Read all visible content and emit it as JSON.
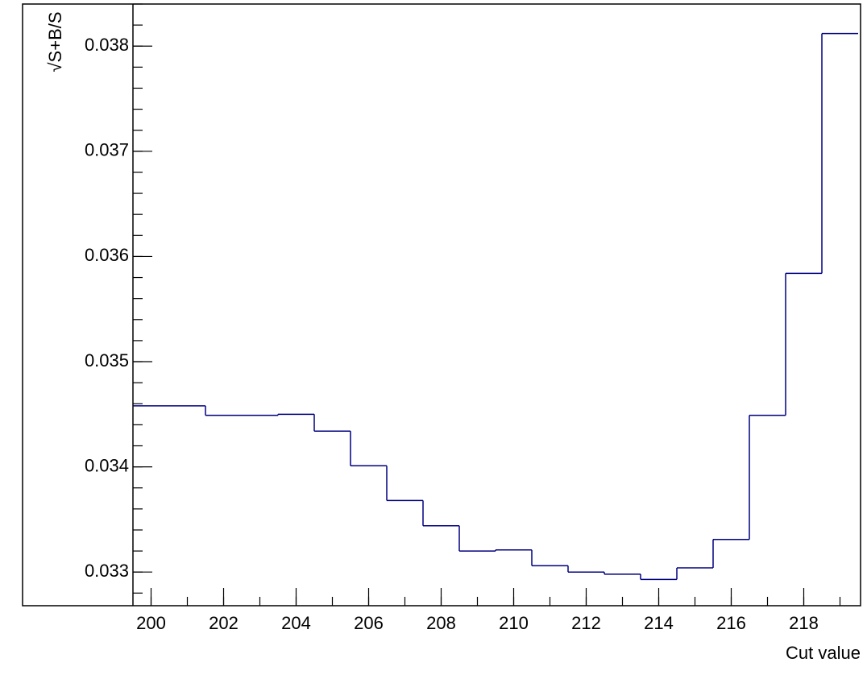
{
  "chart_data": {
    "type": "histogram",
    "x_label": "Cut value",
    "y_label": "√S+B/S",
    "bins": [
      199.5,
      200.5,
      201.5,
      202.5,
      203.5,
      204.5,
      205.5,
      206.5,
      207.5,
      208.5,
      209.5,
      210.5,
      211.5,
      212.5,
      213.5,
      214.5,
      215.5,
      216.5,
      217.5,
      218.5,
      219.5
    ],
    "counts": [
      0.03458,
      0.03458,
      0.03449,
      0.03449,
      0.0345,
      0.03434,
      0.03401,
      0.03368,
      0.03344,
      0.0332,
      0.03321,
      0.03306,
      0.033,
      0.03298,
      0.03293,
      0.03304,
      0.03331,
      0.03449,
      0.03584,
      0.03812
    ],
    "color": "#000080",
    "xlim": [
      199.5,
      219.5
    ],
    "ylim": [
      0.03268,
      0.0384
    ],
    "xticks": [
      200,
      202,
      204,
      206,
      208,
      210,
      212,
      214,
      216,
      218
    ],
    "yticks": [
      0.033,
      0.034,
      0.035,
      0.036,
      0.037,
      0.038
    ]
  }
}
